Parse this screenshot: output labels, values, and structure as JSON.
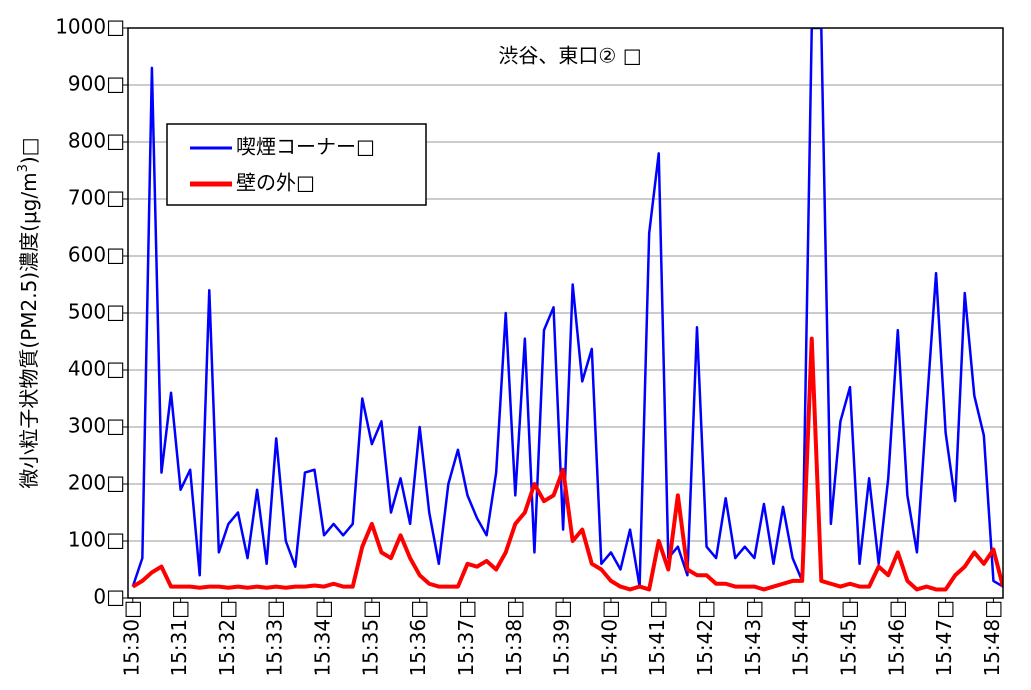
{
  "chart_data": {
    "type": "line",
    "title": "渋谷、東口② □",
    "y_label": [
      "微小粒子状物質(PM2.5)濃度(μg/m",
      "3",
      ")□"
    ],
    "x": [
      0,
      0.2,
      0.4,
      0.6,
      0.8,
      1,
      1.2,
      1.4,
      1.6,
      1.8,
      2,
      2.2,
      2.4,
      2.6,
      2.8,
      3,
      3.2,
      3.4,
      3.6,
      3.8,
      4,
      4.2,
      4.4,
      4.6,
      4.8,
      5,
      5.2,
      5.4,
      5.6,
      5.8,
      6,
      6.2,
      6.4,
      6.6,
      6.8,
      7,
      7.2,
      7.4,
      7.6,
      7.8,
      8,
      8.2,
      8.4,
      8.6,
      8.8,
      9,
      9.2,
      9.4,
      9.6,
      9.8,
      10,
      10.2,
      10.4,
      10.6,
      10.8,
      11,
      11.2,
      11.4,
      11.6,
      11.8,
      12,
      12.2,
      12.4,
      12.6,
      12.8,
      13,
      13.2,
      13.4,
      13.6,
      13.8,
      14,
      14.2,
      14.4,
      14.6,
      14.8,
      15,
      15.2,
      15.4,
      15.6,
      15.8,
      16,
      16.2,
      16.4,
      16.6,
      16.8,
      17,
      17.2,
      17.4,
      17.6,
      17.8,
      18,
      18.2
    ],
    "series": [
      {
        "name": "喫煙コーナー□",
        "color": "#0000ff",
        "values": [
          20,
          70,
          930,
          220,
          360,
          190,
          225,
          40,
          540,
          80,
          130,
          150,
          70,
          190,
          60,
          280,
          100,
          55,
          220,
          225,
          110,
          130,
          110,
          130,
          350,
          270,
          310,
          150,
          210,
          130,
          300,
          150,
          60,
          200,
          260,
          180,
          140,
          110,
          220,
          500,
          180,
          455,
          80,
          470,
          510,
          120,
          550,
          380,
          437,
          60,
          80,
          50,
          120,
          20,
          640,
          780,
          70,
          90,
          40,
          475,
          90,
          70,
          175,
          70,
          90,
          70,
          165,
          60,
          160,
          70,
          30,
          1000,
          1000,
          130,
          310,
          370,
          60,
          210,
          60,
          210,
          470,
          180,
          80,
          330,
          570,
          290,
          170,
          535,
          355,
          285,
          30,
          20
        ]
      },
      {
        "name": "壁の外□",
        "color": "#ff0000",
        "values": [
          20,
          30,
          45,
          55,
          20,
          20,
          20,
          18,
          20,
          20,
          18,
          20,
          18,
          20,
          18,
          20,
          18,
          20,
          20,
          22,
          20,
          25,
          20,
          20,
          90,
          130,
          80,
          70,
          110,
          70,
          40,
          25,
          20,
          20,
          20,
          60,
          55,
          65,
          50,
          80,
          130,
          150,
          200,
          170,
          180,
          225,
          100,
          120,
          60,
          50,
          30,
          20,
          15,
          20,
          15,
          100,
          50,
          180,
          50,
          40,
          40,
          25,
          25,
          20,
          20,
          20,
          15,
          20,
          25,
          30,
          30,
          455,
          30,
          25,
          20,
          25,
          20,
          20,
          55,
          40,
          80,
          30,
          15,
          20,
          15,
          15,
          40,
          55,
          80,
          60,
          85,
          20
        ]
      }
    ],
    "xlim": [
      -0.1,
      18.2
    ],
    "xticks": [
      {
        "value": 0,
        "label": "15:30□"
      },
      {
        "value": 1,
        "label": "15:31□"
      },
      {
        "value": 2,
        "label": "15:32□"
      },
      {
        "value": 3,
        "label": "15:33□"
      },
      {
        "value": 4,
        "label": "15:34□"
      },
      {
        "value": 5,
        "label": "15:35□"
      },
      {
        "value": 6,
        "label": "15:36□"
      },
      {
        "value": 7,
        "label": "15:37□"
      },
      {
        "value": 8,
        "label": "15:38□"
      },
      {
        "value": 9,
        "label": "15:39□"
      },
      {
        "value": 10,
        "label": "15:40□"
      },
      {
        "value": 11,
        "label": "15:41□"
      },
      {
        "value": 12,
        "label": "15:42□"
      },
      {
        "value": 13,
        "label": "15:43□"
      },
      {
        "value": 14,
        "label": "15:44□"
      },
      {
        "value": 15,
        "label": "15:45□"
      },
      {
        "value": 16,
        "label": "15:46□"
      },
      {
        "value": 17,
        "label": "15:47□"
      },
      {
        "value": 18,
        "label": "15:48□"
      }
    ],
    "ylim": [
      0,
      1000
    ],
    "yticks": [
      {
        "value": 0,
        "label": "0□"
      },
      {
        "value": 100,
        "label": "100□"
      },
      {
        "value": 200,
        "label": "200□"
      },
      {
        "value": 300,
        "label": "300□"
      },
      {
        "value": 400,
        "label": "400□"
      },
      {
        "value": 500,
        "label": "500□"
      },
      {
        "value": 600,
        "label": "600□"
      },
      {
        "value": 700,
        "label": "700□"
      },
      {
        "value": 800,
        "label": "800□"
      },
      {
        "value": 900,
        "label": "900□"
      },
      {
        "value": 1000,
        "label": "1000□"
      }
    ],
    "grid": true
  }
}
